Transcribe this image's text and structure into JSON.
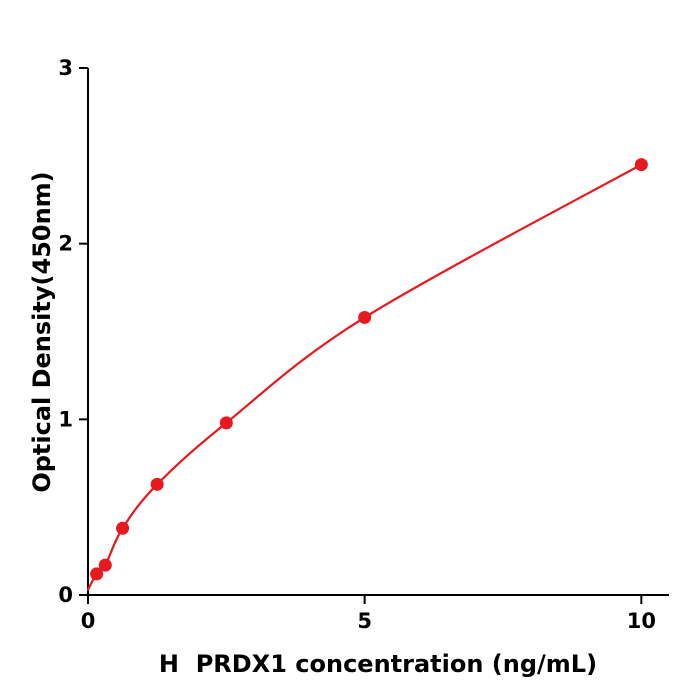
{
  "chart_data": {
    "type": "scatter",
    "title": "",
    "xlabel": "H  PRDX1 concentration (ng/mL)",
    "ylabel": "Optical Density(450nm)",
    "x": [
      0.156,
      0.3125,
      0.625,
      1.25,
      2.5,
      5,
      10
    ],
    "y": [
      0.12,
      0.17,
      0.38,
      0.63,
      0.98,
      1.58,
      2.45
    ],
    "curve_start": [
      0,
      0.03
    ],
    "xlim": [
      0,
      10.5
    ],
    "ylim": [
      0,
      3
    ],
    "xticks": [
      0,
      5,
      10
    ],
    "yticks": [
      0,
      1,
      2,
      3
    ],
    "grid": false,
    "legend": null,
    "line_color": "#e8191e",
    "marker_color": "#e8191e",
    "axis_color": "#000000",
    "marker_radius": 6.5,
    "line_width": 2.2
  }
}
